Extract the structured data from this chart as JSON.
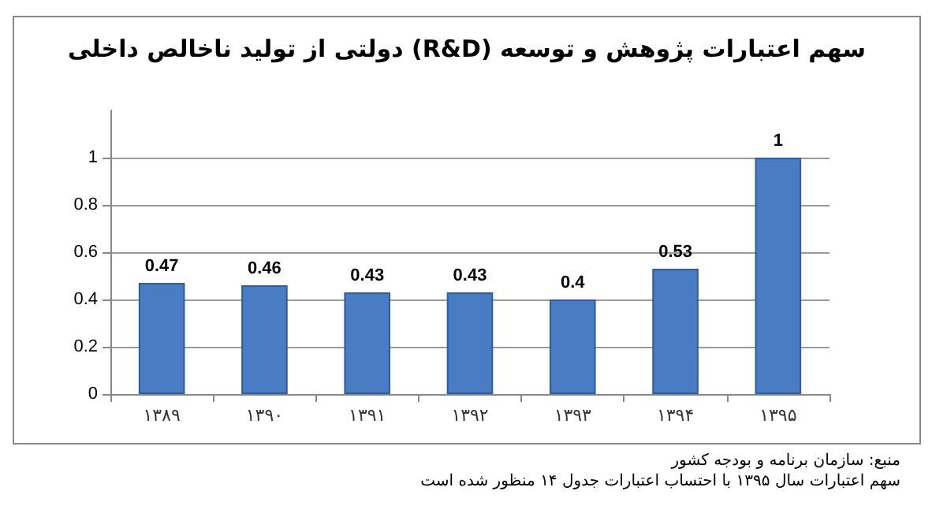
{
  "chart_data": {
    "type": "bar",
    "title": "سهم اعتبارات پژوهش و توسعه (R&D) دولتی از تولید ناخالص داخلی",
    "categories": [
      "۱۳۸۹",
      "۱۳۹۰",
      "۱۳۹۱",
      "۱۳۹۲",
      "۱۳۹۳",
      "۱۳۹۴",
      "۱۳۹۵"
    ],
    "values": [
      0.47,
      0.46,
      0.43,
      0.43,
      0.4,
      0.53,
      1
    ],
    "color": "#4a7cc4",
    "ylim": [
      0,
      1.2
    ],
    "yticks": [
      0,
      0.2,
      0.4,
      0.6,
      0.8,
      1
    ],
    "grid": "y",
    "data_labels": true,
    "annotations": [
      "منبع: سازمان  برنامه و بودجه کشور",
      "سهم اعتبارات سال ۱۳۹۵ با احتساب اعتبارات جدول ۱۴ منظور شده است"
    ]
  }
}
